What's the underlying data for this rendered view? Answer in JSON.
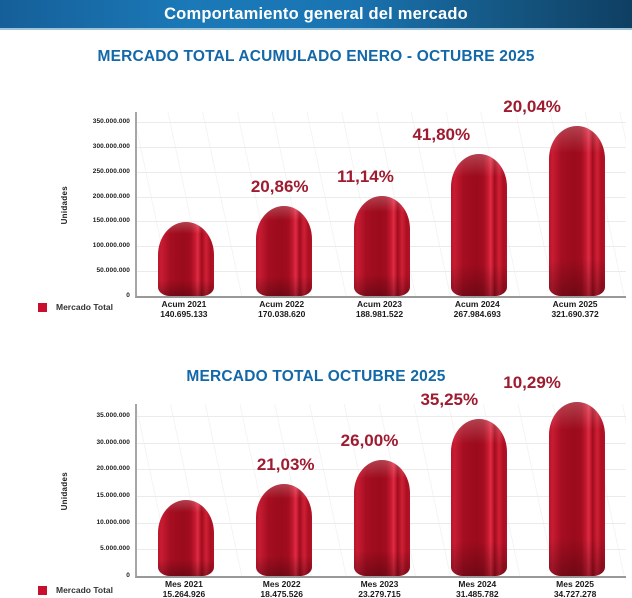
{
  "header": {
    "title": "Comportamiento general del mercado"
  },
  "colors": {
    "header_blue_left": "#1b79b7",
    "header_blue_right": "#0f3f63",
    "title_blue": "#1268a8",
    "bar_red": "#b01226",
    "percent_red": "#9e1b30",
    "legend_red": "#c8102e"
  },
  "chart_data": [
    {
      "type": "bar",
      "title": "MERCADO TOTAL ACUMULADO ENERO - OCTUBRE 2025",
      "ylabel": "Unidades",
      "legend": "Mercado Total",
      "legend_position": "bottom-left",
      "grid": true,
      "categories": [
        "Acum 2021",
        "Acum 2022",
        "Acum 2023",
        "Acum 2024",
        "Acum 2025"
      ],
      "values": [
        140695133,
        170038620,
        188981522,
        267984693,
        321690372
      ],
      "value_labels": [
        "140.695.133",
        "170.038.620",
        "188.981.522",
        "267.984.693",
        "321.690.372"
      ],
      "pct_labels": [
        "",
        "20,86%",
        "11,14%",
        "41,80%",
        "20,04%"
      ],
      "yticks_display": [
        "350.000.000",
        "300.000.000",
        "250.000.000",
        "200.000.000",
        "150.000.000",
        "100.000.000",
        "50.000.000",
        "0"
      ],
      "ylim": [
        0,
        350000000
      ]
    },
    {
      "type": "bar",
      "title": "MERCADO TOTAL OCTUBRE 2025",
      "ylabel": "Unidades",
      "legend": "Mercado Total",
      "legend_position": "bottom-left",
      "grid": true,
      "categories": [
        "Mes 2021",
        "Mes 2022",
        "Mes 2023",
        "Mes 2024",
        "Mes 2025"
      ],
      "values": [
        15264926,
        18475526,
        23279715,
        31485782,
        34727278
      ],
      "value_labels": [
        "15.264.926",
        "18.475.526",
        "23.279.715",
        "31.485.782",
        "34.727.278"
      ],
      "pct_labels": [
        "",
        "21,03%",
        "26,00%",
        "35,25%",
        "10,29%"
      ],
      "yticks_display": [
        "35.000.000",
        "30.000.000",
        "20.000.000",
        "15.000.000",
        "10.000.000",
        "5.000.000",
        "0"
      ],
      "ylim": [
        0,
        35000000
      ]
    }
  ]
}
